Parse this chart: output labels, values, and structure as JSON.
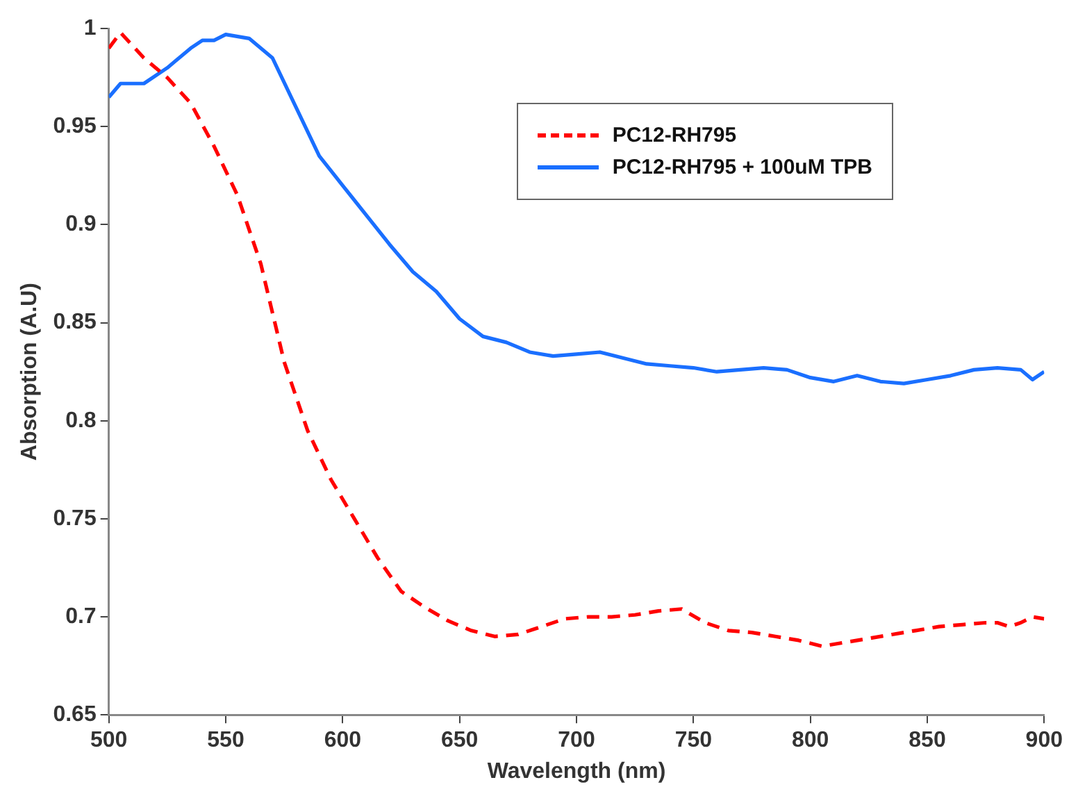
{
  "chart_data": {
    "type": "line",
    "xlabel": "Wavelength (nm)",
    "ylabel": "Absorption (A.U)",
    "xlim": [
      500,
      900
    ],
    "xticks": [
      500,
      550,
      600,
      650,
      700,
      750,
      800,
      850,
      900
    ],
    "ylim": [
      0.65,
      1
    ],
    "yticks": [
      0.65,
      0.7,
      0.75,
      0.8,
      0.85,
      0.9,
      0.95,
      1
    ],
    "grid": false,
    "legend": "top right",
    "marker": "none",
    "series": [
      {
        "name": "PC12-RH795",
        "color": "#ff0000",
        "line_style": "dashed",
        "x": [
          500,
          505,
          515,
          525,
          535,
          545,
          555,
          565,
          575,
          585,
          595,
          605,
          615,
          625,
          635,
          645,
          655,
          665,
          675,
          685,
          695,
          705,
          715,
          725,
          735,
          745,
          755,
          765,
          775,
          785,
          795,
          805,
          815,
          825,
          835,
          845,
          855,
          865,
          875,
          880,
          885,
          890,
          895,
          900
        ],
        "values": [
          0.99,
          0.998,
          0.985,
          0.975,
          0.962,
          0.94,
          0.915,
          0.88,
          0.83,
          0.795,
          0.77,
          0.75,
          0.73,
          0.713,
          0.705,
          0.698,
          0.693,
          0.69,
          0.691,
          0.695,
          0.699,
          0.7,
          0.7,
          0.701,
          0.703,
          0.704,
          0.697,
          0.693,
          0.692,
          0.69,
          0.688,
          0.685,
          0.687,
          0.689,
          0.691,
          0.693,
          0.695,
          0.696,
          0.697,
          0.697,
          0.695,
          0.697,
          0.7,
          0.699
        ]
      },
      {
        "name": "PC12-RH795 + 100uM TPB",
        "color": "#1a6fff",
        "line_style": "solid",
        "x": [
          500,
          505,
          515,
          525,
          535,
          540,
          545,
          550,
          560,
          570,
          580,
          590,
          600,
          610,
          620,
          630,
          640,
          650,
          660,
          670,
          680,
          690,
          700,
          710,
          720,
          730,
          740,
          750,
          760,
          770,
          780,
          790,
          800,
          810,
          820,
          830,
          840,
          850,
          860,
          870,
          880,
          890,
          895,
          900
        ],
        "values": [
          0.965,
          0.972,
          0.972,
          0.98,
          0.99,
          0.994,
          0.994,
          0.997,
          0.995,
          0.985,
          0.96,
          0.935,
          0.92,
          0.905,
          0.89,
          0.876,
          0.866,
          0.852,
          0.843,
          0.84,
          0.835,
          0.833,
          0.834,
          0.835,
          0.832,
          0.829,
          0.828,
          0.827,
          0.825,
          0.826,
          0.827,
          0.826,
          0.822,
          0.82,
          0.823,
          0.82,
          0.819,
          0.821,
          0.823,
          0.826,
          0.827,
          0.826,
          0.821,
          0.825
        ]
      }
    ]
  }
}
